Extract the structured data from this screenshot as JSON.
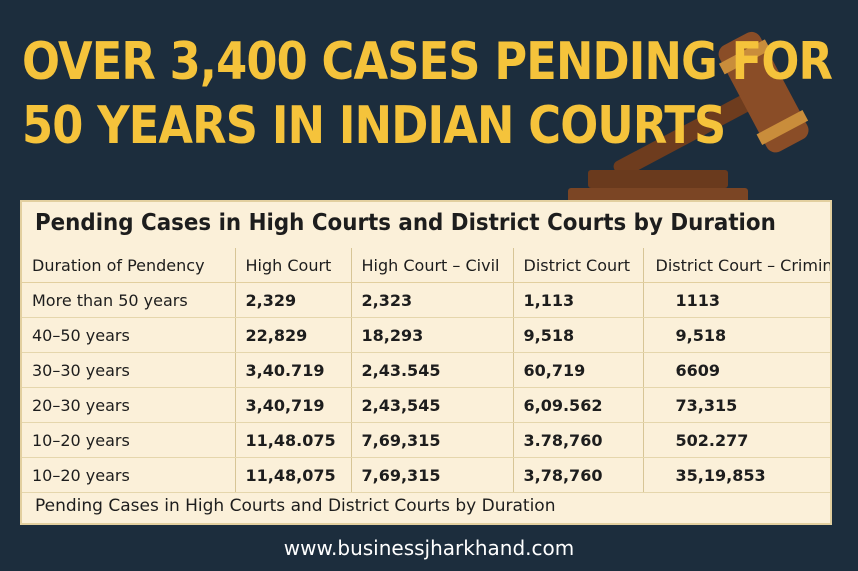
{
  "headline": {
    "line1": "OVER 3,400 CASES PENDING FOR",
    "line2": "50 YEARS IN INDIAN COURTS"
  },
  "colors": {
    "background": "#1c2d3d",
    "headline": "#f5c33b",
    "panel": "#fbf0d9",
    "gavel": "#7b4524"
  },
  "icons": {
    "background_art": "gavel-icon"
  },
  "chart_data": {
    "type": "table",
    "title": "Pending Cases in High Courts and District Courts by Duration",
    "columns": [
      "Duration of Pendency",
      "High Court",
      "High Court – Civil",
      "District Court",
      "District Court – Crimina"
    ],
    "rows": [
      [
        "More than 50 years",
        "2,329",
        "2,323",
        "1,113",
        "1113"
      ],
      [
        "40–50 years",
        "22,829",
        "18,293",
        "9,518",
        "9,518"
      ],
      [
        "30–30 years",
        "3,40.719",
        "2,43.545",
        "60,719",
        "6609"
      ],
      [
        "20–30 years",
        "3,40,719",
        "2,43,545",
        "6,09.562",
        "73,315"
      ],
      [
        "10–20 years",
        "11,48.075",
        "7,69,315",
        "3.78,760",
        "502.277"
      ],
      [
        "10–20 years",
        "11,48,075",
        "7,69,315",
        "3,78,760",
        "35,19,853"
      ]
    ],
    "footer": "Pending Cases in High Courts and District Courts by Duration"
  },
  "website": "www.businessjharkhand.com"
}
